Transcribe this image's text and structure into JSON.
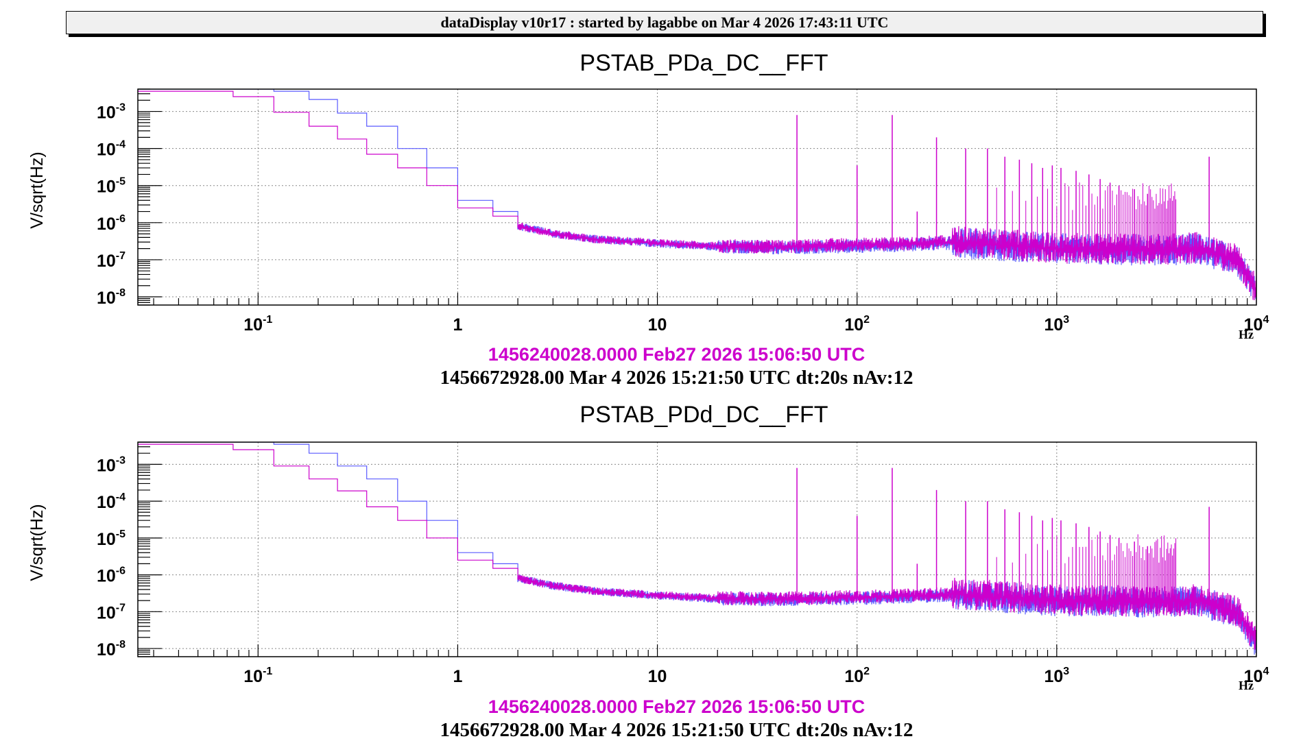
{
  "header": {
    "title": "dataDisplay v10r17 : started by lagabbe on Mar  4 2026 17:43:11 UTC"
  },
  "colors": {
    "reference": "#cc00cc",
    "current": "#5a5aff",
    "grid": "#888888"
  },
  "chart_data": [
    {
      "type": "line",
      "title": "PSTAB_PDa_DC__FFT",
      "xlabel": "Hz",
      "ylabel": "V/sqrt(Hz)",
      "xscale": "log",
      "yscale": "log",
      "xlim": [
        0.025,
        10000
      ],
      "ylim": [
        6e-09,
        0.004
      ],
      "grid": true,
      "x_ticks": [
        {
          "base": "10",
          "exp": "-1",
          "value": 0.1
        },
        {
          "base": "1",
          "exp": "",
          "value": 1
        },
        {
          "base": "10",
          "exp": "",
          "value": 10
        },
        {
          "base": "10",
          "exp": "2",
          "value": 100
        },
        {
          "base": "10",
          "exp": "3",
          "value": 1000
        },
        {
          "base": "10",
          "exp": "4",
          "value": 10000
        }
      ],
      "y_ticks": [
        {
          "base": "10",
          "exp": "-3",
          "value": 0.001
        },
        {
          "base": "10",
          "exp": "-4",
          "value": 0.0001
        },
        {
          "base": "10",
          "exp": "-5",
          "value": 1e-05
        },
        {
          "base": "10",
          "exp": "-6",
          "value": 1e-06
        },
        {
          "base": "10",
          "exp": "-7",
          "value": 1e-07
        },
        {
          "base": "10",
          "exp": "-8",
          "value": 1e-08
        }
      ],
      "series": [
        {
          "name": "1456240028.0000 Feb27 2026 15:06:50 UTC",
          "color": "#cc00cc",
          "floor_x": [
            0.025,
            0.075,
            0.12,
            0.18,
            0.25,
            0.35,
            0.5,
            0.7,
            1,
            1.5,
            2,
            3,
            5,
            10,
            20,
            40,
            70,
            150,
            300,
            1000,
            3000,
            5000,
            8000,
            10000
          ],
          "floor_y": [
            0.0035,
            0.0025,
            0.00095,
            0.0004,
            0.00018,
            7e-05,
            3e-05,
            1e-05,
            2.5e-06,
            1.5e-06,
            8e-07,
            5e-07,
            3.5e-07,
            2.8e-07,
            2.3e-07,
            2.2e-07,
            2.4e-07,
            2.6e-07,
            3e-07,
            2e-07,
            1.8e-07,
            2e-07,
            1e-07,
            1.5e-08
          ],
          "peaks_x": [
            50,
            100,
            150,
            200,
            250,
            350,
            450,
            550,
            650,
            750,
            850,
            950,
            1050,
            1250,
            1450,
            1650,
            1850,
            2050,
            2450,
            2850,
            5800
          ],
          "peaks_y": [
            0.0008,
            3.5e-05,
            0.0008,
            2e-06,
            0.0002,
            0.0001,
            0.0001,
            6e-05,
            5e-05,
            4e-05,
            3e-05,
            3.5e-05,
            3e-05,
            2.5e-05,
            2e-05,
            1.5e-05,
            1.2e-05,
            1e-05,
            8e-06,
            6e-06,
            6e-05
          ]
        },
        {
          "name": "1456672928.00 Mar 4 2026 15:21:50 UTC dt:20s nAv:12",
          "color": "#5a5aff",
          "floor_x": [
            0.025,
            0.12,
            0.18,
            0.25,
            0.35,
            0.5,
            0.7,
            1,
            1.5,
            2,
            3,
            5,
            10,
            20,
            40,
            70,
            150,
            300,
            1000,
            3000,
            5000,
            8000,
            10000
          ],
          "floor_y": [
            0.004,
            0.0035,
            0.0021,
            0.0009,
            0.0004,
            0.0001,
            3e-05,
            4e-06,
            2e-06,
            8e-07,
            5e-07,
            3.5e-07,
            2.7e-07,
            2.2e-07,
            2.1e-07,
            2.2e-07,
            2.4e-07,
            2.8e-07,
            1.9e-07,
            1.7e-07,
            1.9e-07,
            9e-08,
            1.4e-08
          ]
        }
      ],
      "legend": [
        "1456240028.0000 Feb27 2026 15:06:50 UTC",
        "1456672928.00 Mar 4 2026 15:21:50 UTC dt:20s nAv:12"
      ]
    },
    {
      "type": "line",
      "title": "PSTAB_PDd_DC__FFT",
      "xlabel": "Hz",
      "ylabel": "V/sqrt(Hz)",
      "xscale": "log",
      "yscale": "log",
      "xlim": [
        0.025,
        10000
      ],
      "ylim": [
        6e-09,
        0.004
      ],
      "grid": true,
      "x_ticks": [
        {
          "base": "10",
          "exp": "-1",
          "value": 0.1
        },
        {
          "base": "1",
          "exp": "",
          "value": 1
        },
        {
          "base": "10",
          "exp": "",
          "value": 10
        },
        {
          "base": "10",
          "exp": "2",
          "value": 100
        },
        {
          "base": "10",
          "exp": "3",
          "value": 1000
        },
        {
          "base": "10",
          "exp": "4",
          "value": 10000
        }
      ],
      "y_ticks": [
        {
          "base": "10",
          "exp": "-3",
          "value": 0.001
        },
        {
          "base": "10",
          "exp": "-4",
          "value": 0.0001
        },
        {
          "base": "10",
          "exp": "-5",
          "value": 1e-05
        },
        {
          "base": "10",
          "exp": "-6",
          "value": 1e-06
        },
        {
          "base": "10",
          "exp": "-7",
          "value": 1e-07
        },
        {
          "base": "10",
          "exp": "-8",
          "value": 1e-08
        }
      ],
      "series": [
        {
          "name": "1456240028.0000 Feb27 2026 15:06:50 UTC",
          "color": "#cc00cc",
          "floor_x": [
            0.025,
            0.075,
            0.12,
            0.18,
            0.25,
            0.35,
            0.5,
            0.7,
            1,
            1.5,
            2,
            3,
            5,
            10,
            20,
            40,
            70,
            150,
            300,
            1000,
            3000,
            5000,
            8000,
            10000
          ],
          "floor_y": [
            0.0035,
            0.0025,
            0.0009,
            0.0004,
            0.00019,
            7e-05,
            3e-05,
            1e-05,
            2.5e-06,
            1.5e-06,
            8e-07,
            5e-07,
            3.5e-07,
            2.8e-07,
            2.3e-07,
            2.2e-07,
            2.4e-07,
            2.6e-07,
            3e-07,
            2e-07,
            1.8e-07,
            2e-07,
            1e-07,
            1.5e-08
          ],
          "peaks_x": [
            50,
            100,
            150,
            200,
            250,
            350,
            450,
            550,
            650,
            750,
            850,
            950,
            1050,
            1250,
            1450,
            1650,
            1850,
            2050,
            2450,
            2850,
            5800
          ],
          "peaks_y": [
            0.0008,
            4e-05,
            0.0008,
            2e-06,
            0.0002,
            0.0001,
            0.0001,
            6e-05,
            5e-05,
            4e-05,
            3e-05,
            3.5e-05,
            3e-05,
            2.5e-05,
            2e-05,
            1.5e-05,
            1.2e-05,
            1e-05,
            8e-06,
            6e-06,
            7e-05
          ]
        },
        {
          "name": "1456672928.00 Mar 4 2026 15:21:50 UTC dt:20s nAv:12",
          "color": "#5a5aff",
          "floor_x": [
            0.025,
            0.12,
            0.18,
            0.25,
            0.35,
            0.5,
            0.7,
            1,
            1.5,
            2,
            3,
            5,
            10,
            20,
            40,
            70,
            150,
            300,
            1000,
            3000,
            5000,
            8000,
            10000
          ],
          "floor_y": [
            0.004,
            0.0035,
            0.002,
            0.0009,
            0.0004,
            0.0001,
            3e-05,
            4e-06,
            2e-06,
            8e-07,
            5e-07,
            3.5e-07,
            2.7e-07,
            2.2e-07,
            2.1e-07,
            2.2e-07,
            2.4e-07,
            2.8e-07,
            1.9e-07,
            1.7e-07,
            1.9e-07,
            9e-08,
            1.4e-08
          ]
        }
      ],
      "legend": [
        "1456240028.0000 Feb27 2026 15:06:50 UTC",
        "1456672928.00 Mar 4 2026 15:21:50 UTC dt:20s nAv:12"
      ]
    }
  ]
}
